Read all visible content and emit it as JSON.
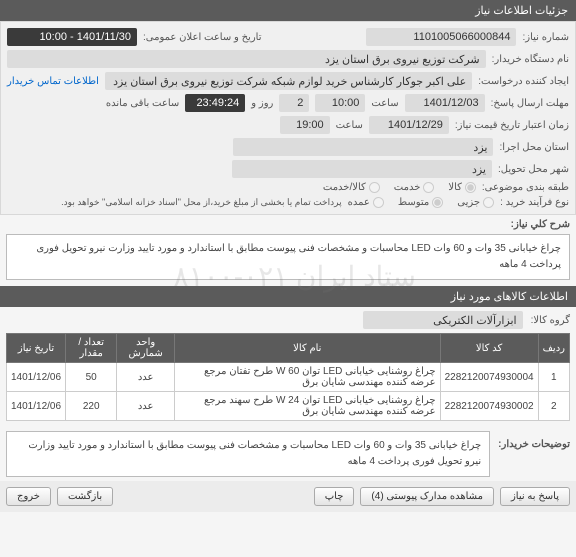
{
  "colors": {
    "header_bg": "#5b5b5b",
    "header_fg": "#ffffff",
    "field_bg": "#dcdcdc",
    "field_dark": "#3a3a3a",
    "link": "#0066cc"
  },
  "watermark": "ستاد ایران   ۰۲۱-۸۱۰۰",
  "sec1_title": "جزئیات اطلاعات نیاز",
  "f": {
    "need_no_lbl": "شماره نیاز:",
    "org_lbl": "نام دستگاه خریدار:",
    "creator_lbl": "ایجاد کننده درخواست:",
    "deadline_lbl": "مهلت ارسال پاسخ:",
    "validity_lbl": "زمان اعتبار تاریخ قیمت نیاز:",
    "exec_loc_lbl": "استان محل اجرا:",
    "deliv_city_lbl": "شهر محل تحویل:",
    "classify_lbl": "طبقه بندی موضوعی:",
    "process_lbl": "نوع فرآیند خرید :",
    "announce_lbl": "تاریخ و ساعت اعلان عمومی:",
    "hour_lbl": "ساعت",
    "day_lbl": "روز و",
    "remain_lbl": "ساعت باقی مانده",
    "contact_link": "اطلاعات تماس خریدار",
    "pay_note": "پرداخت تمام یا بخشی از مبلغ خرید،از محل \"اسناد خزانه اسلامی\" خواهد بود."
  },
  "v": {
    "need_no": "1101005066000844",
    "org": "شرکت توزیع نیروی برق استان یزد",
    "creator": "علی اکبر  جوکار  کارشناس خرید لوازم شبکه  شرکت توزیع نیروی برق استان یزد",
    "deadline_date": "1401/12/03",
    "deadline_time": "10:00",
    "deadline_days": "2",
    "deadline_countdown": "23:49:24",
    "validity_date": "1401/12/29",
    "validity_time": "19:00",
    "exec_loc": "یزد",
    "deliv_city": "یزد",
    "announce": "1401/11/30 - 10:00"
  },
  "radios": {
    "classify": [
      {
        "label": "کالا",
        "checked": true
      },
      {
        "label": "خدمت",
        "checked": false
      },
      {
        "label": "کالا/خدمت",
        "checked": false
      }
    ],
    "process": [
      {
        "label": "جزیی",
        "checked": false
      },
      {
        "label": "متوسط",
        "checked": true
      },
      {
        "label": "عمده",
        "checked": false
      }
    ]
  },
  "desc": {
    "title": "شرح کلي نياز:",
    "text": "چراغ خیابانی 35 وات و 60 وات LED محاسبات و مشخصات فنی پیوست مطابق با استاندارد و مورد تایید وزارت نیرو تحویل فوری پرداخت 4 ماهه"
  },
  "sec2_title": "اطلاعات کالاهای مورد نیاز",
  "group": {
    "lbl": "گروه کالا:",
    "val": "ابزارآلات الکتریکی"
  },
  "table": {
    "headers": [
      "ردیف",
      "کد کالا",
      "نام کالا",
      "واحد شمارش",
      "تعداد / مقدار",
      "تاریخ نیاز"
    ],
    "rows": [
      {
        "n": "1",
        "code": "2282120074930004",
        "name": "چراغ روشنایی خیابانی LED توان W 60 طرح تفتان مرجع عرضه کننده مهندسی شایان برق",
        "unit": "عدد",
        "qty": "50",
        "date": "1401/12/06"
      },
      {
        "n": "2",
        "code": "2282120074930002",
        "name": "چراغ روشنایی خیابانی LED توان W 24 طرح سهند مرجع عرضه کننده مهندسی شایان برق",
        "unit": "عدد",
        "qty": "220",
        "date": "1401/12/06"
      }
    ]
  },
  "buyer_note": {
    "lbl": "توضیحات خریدار:",
    "text": "چراغ خیابانی 35 وات و 60 وات LED محاسبات و مشخصات فنی پیوست مطابق با استاندارد و مورد تایید وزارت نیرو تحویل فوری پرداخت 4 ماهه"
  },
  "buttons": {
    "reply": "پاسخ به نیاز",
    "attach": "مشاهده مدارک پیوستی (4)",
    "print": "چاپ",
    "back": "بازگشت",
    "exit": "خروج"
  }
}
